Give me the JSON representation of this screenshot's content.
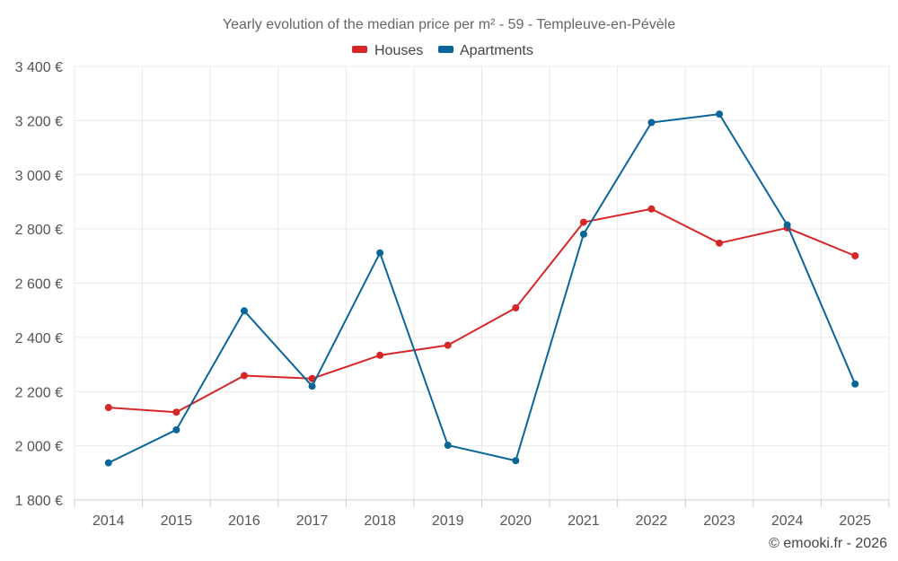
{
  "chart_data": {
    "type": "line",
    "title": "Yearly evolution of the median price per m² - 59 - Templeuve-en-Pévèle",
    "categories": [
      "2014",
      "2015",
      "2016",
      "2017",
      "2018",
      "2019",
      "2020",
      "2021",
      "2022",
      "2023",
      "2024",
      "2025"
    ],
    "series": [
      {
        "name": "Houses",
        "color": "#d62728",
        "values": [
          2141,
          2124,
          2259,
          2248,
          2334,
          2371,
          2509,
          2825,
          2874,
          2748,
          2804,
          2701
        ]
      },
      {
        "name": "Apartments",
        "color": "#0a6599",
        "values": [
          1937,
          2059,
          2498,
          2220,
          2712,
          2002,
          1945,
          2781,
          3193,
          3224,
          2815,
          2228
        ]
      }
    ],
    "ylim": [
      1800,
      3400
    ],
    "yticks": [
      1800,
      2000,
      2200,
      2400,
      2600,
      2800,
      3000,
      3200,
      3400
    ],
    "ytick_labels": [
      "1 800 €",
      "2 000 €",
      "2 200 €",
      "2 400 €",
      "2 600 €",
      "2 800 €",
      "3 000 €",
      "3 200 €",
      "3 400 €"
    ],
    "legend_position": "top-center",
    "grid": true
  },
  "credit": "© emooki.fr - 2026"
}
